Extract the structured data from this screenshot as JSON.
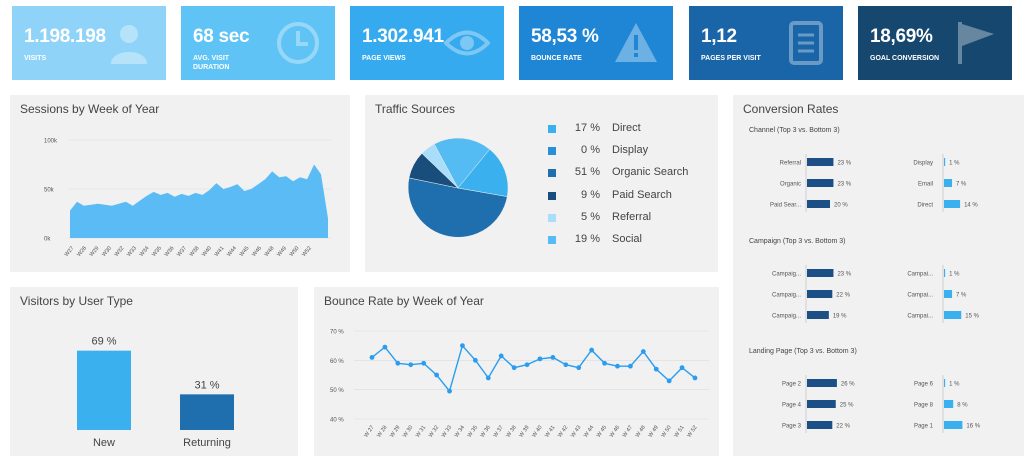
{
  "kpis": [
    {
      "value": "1.198.198",
      "label": "VISITS",
      "label2": "",
      "color": "#8fd4f8",
      "icon": "user-icon"
    },
    {
      "value": "68 sec",
      "label": "AVG. VISIT",
      "label2": "DURATION",
      "color": "#5fc3f5",
      "icon": "clock-icon"
    },
    {
      "value": "1.302.941",
      "label": "PAGE VIEWS",
      "label2": "",
      "color": "#36aaee",
      "icon": "eye-icon"
    },
    {
      "value": "58,53 %",
      "label": "BOUNCE RATE",
      "label2": "",
      "color": "#1f86d6",
      "icon": "warning-icon"
    },
    {
      "value": "1,12",
      "label": "PAGES PER VISIT",
      "label2": "",
      "color": "#1a64a8",
      "icon": "document-icon"
    },
    {
      "value": "18,69%",
      "label": "GOAL CONVERSION",
      "label2": "",
      "color": "#16476f",
      "icon": "flag-icon"
    }
  ],
  "sessions": {
    "title": "Sessions by Week of Year",
    "chart_data": {
      "type": "area",
      "title": "Sessions by Week of Year",
      "yticks": [
        "100k",
        "50k",
        "0k"
      ],
      "ylim": [
        0,
        100000
      ],
      "xticks": [
        "W27",
        "W28",
        "W29",
        "W30",
        "W32",
        "W33",
        "W34",
        "W35",
        "W36",
        "W37",
        "W38",
        "W40",
        "W41",
        "W44",
        "W45",
        "W46",
        "W48",
        "W49",
        "W50",
        "W52"
      ],
      "values": [
        28000,
        37000,
        33000,
        34000,
        35000,
        34000,
        33000,
        35000,
        37000,
        33000,
        38000,
        43000,
        47000,
        44000,
        46000,
        42000,
        45000,
        43000,
        46000,
        44000,
        49000,
        56000,
        50000,
        52000,
        55000,
        48000,
        50000,
        55000,
        60000,
        68000,
        62000,
        63000,
        58000,
        62000,
        60000,
        75000,
        65000,
        20000
      ],
      "color": "#5bbcf5"
    }
  },
  "traffic": {
    "title": "Traffic Sources",
    "chart_data": {
      "type": "pie",
      "title": "Traffic Sources",
      "labels": [
        "Direct",
        "Display",
        "Organic Search",
        "Paid Search",
        "Referral",
        "Social"
      ],
      "values": [
        17,
        0,
        51,
        9,
        5,
        19
      ],
      "pct_labels": [
        "17 %",
        "0 %",
        "51 %",
        "9 %",
        "5 %",
        "19 %"
      ],
      "colors": [
        "#3ab0ee",
        "#2a8fd8",
        "#1f6eae",
        "#184d7c",
        "#a9ddf9",
        "#54bcf3"
      ]
    }
  },
  "conversion": {
    "title": "Conversion Rates",
    "sections": [
      {
        "title": "Channel  (Top 3 vs. Bottom 3)",
        "top_labels": [
          "Referral",
          "Organic",
          "Paid Sear..."
        ],
        "top_values": [
          23,
          23,
          20
        ],
        "top_pct": [
          "23 %",
          "23 %",
          "20 %"
        ],
        "bottom_labels": [
          "Display",
          "Email",
          "Direct"
        ],
        "bottom_values": [
          1,
          7,
          14
        ],
        "bottom_pct": [
          "1 %",
          "7 %",
          "14 %"
        ]
      },
      {
        "title": "Campaign (Top 3 vs. Bottom 3)",
        "top_labels": [
          "Campaig...",
          "Campaig...",
          "Campaig..."
        ],
        "top_values": [
          23,
          22,
          19
        ],
        "top_pct": [
          "23 %",
          "22 %",
          "19 %"
        ],
        "bottom_labels": [
          "Campai...",
          "Campai...",
          "Campai..."
        ],
        "bottom_values": [
          1,
          7,
          15
        ],
        "bottom_pct": [
          "1 %",
          "7 %",
          "15 %"
        ]
      },
      {
        "title": "Landing Page (Top 3 vs. Bottom 3)",
        "top_labels": [
          "Page 2",
          "Page 4",
          "Page 3"
        ],
        "top_values": [
          26,
          25,
          22
        ],
        "top_pct": [
          "26 %",
          "25 %",
          "22 %"
        ],
        "bottom_labels": [
          "Page 6",
          "Page 8",
          "Page 1"
        ],
        "bottom_values": [
          1,
          8,
          16
        ],
        "bottom_pct": [
          "1 %",
          "8 %",
          "16 %"
        ]
      }
    ]
  },
  "visitors": {
    "title": "Visitors by User Type",
    "chart_data": {
      "type": "bar",
      "title": "Visitors by User Type",
      "categories": [
        "New",
        "Returning"
      ],
      "values": [
        69,
        31
      ],
      "pct_labels": [
        "69 %",
        "31 %"
      ],
      "colors": [
        "#3ab0ee",
        "#1f6eae"
      ]
    }
  },
  "bounce": {
    "title": "Bounce Rate by Week of Year",
    "chart_data": {
      "type": "line",
      "title": "Bounce Rate by Week of Year",
      "yticks": [
        "70 %",
        "60 %",
        "50 %",
        "40 %"
      ],
      "ylim": [
        40,
        70
      ],
      "xticks": [
        "W 27",
        "W 28",
        "W 29",
        "W 30",
        "W 31",
        "W 32",
        "W 33",
        "W 34",
        "W 35",
        "W 36",
        "W 37",
        "W 38",
        "W 39",
        "W 40",
        "W 41",
        "W 42",
        "W 43",
        "W 44",
        "W 45",
        "W 46",
        "W 47",
        "W 48",
        "W 49",
        "W 50",
        "W 51",
        "W 52"
      ],
      "values": [
        61,
        64.5,
        59,
        58.5,
        59,
        55,
        49.5,
        65,
        60,
        54,
        61.5,
        57.5,
        58.5,
        60.5,
        61,
        58.5,
        57.5,
        63.5,
        59,
        58,
        58,
        63,
        57,
        53,
        57.5,
        54
      ],
      "color": "#2a9df0"
    }
  }
}
